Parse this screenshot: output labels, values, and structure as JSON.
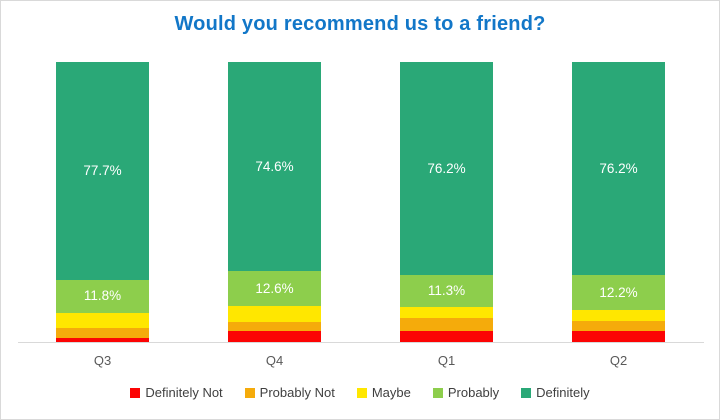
{
  "chart": {
    "title": "Would you recommend us to a friend?",
    "title_color": "#1277C8",
    "background_color": "#FFFFFF",
    "border_color": "#D9D9D9",
    "axis_line_color": "#D9D9D9",
    "axis_label_color": "#595959",
    "legend_text_color": "#404040",
    "data_label_color": "#FFFFFF"
  },
  "chart_data": {
    "type": "bar",
    "stacked": true,
    "percent_stacked": true,
    "unit": "%",
    "title": "Would you recommend us to a friend?",
    "xlabel": "",
    "ylabel": "",
    "ylim": [
      0,
      100
    ],
    "grid": false,
    "legend_position": "bottom",
    "categories": [
      "Q3",
      "Q4",
      "Q1",
      "Q2"
    ],
    "series": [
      {
        "name": "Definitely Not",
        "color": "#FC0404",
        "values": [
          1.5,
          4.0,
          3.9,
          3.8
        ],
        "labels": [
          "",
          "",
          "",
          ""
        ]
      },
      {
        "name": "Probably Not",
        "color": "#F5AB0B",
        "values": [
          3.4,
          3.0,
          4.6,
          3.6
        ],
        "labels": [
          "",
          "",
          "",
          ""
        ]
      },
      {
        "name": "Maybe",
        "color": "#FFE700",
        "values": [
          5.6,
          5.8,
          4.0,
          4.2
        ],
        "labels": [
          "",
          "",
          "",
          ""
        ]
      },
      {
        "name": "Probably",
        "color": "#8DCE4C",
        "values": [
          11.8,
          12.6,
          11.3,
          12.2
        ],
        "labels": [
          "11.8%",
          "12.6%",
          "11.3%",
          "12.2%"
        ]
      },
      {
        "name": "Definitely",
        "color": "#2AA877",
        "values": [
          77.7,
          74.6,
          76.2,
          76.2
        ],
        "labels": [
          "77.7%",
          "74.6%",
          "76.2%",
          "76.2%"
        ]
      }
    ]
  }
}
